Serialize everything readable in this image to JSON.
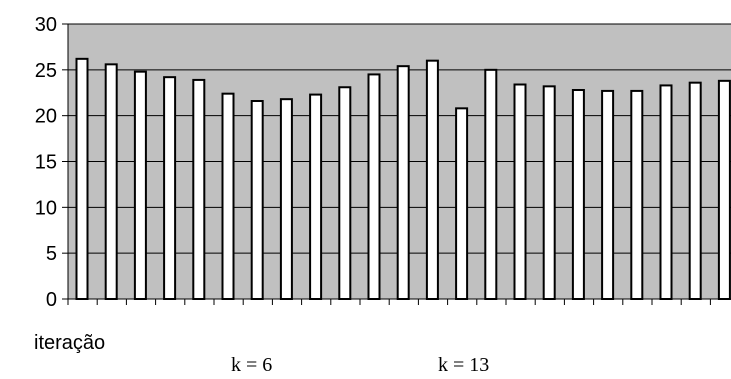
{
  "chart_data": {
    "type": "bar",
    "title": "",
    "xlabel": "iteração",
    "ylabel": "",
    "ylim": [
      0,
      30
    ],
    "yticks": [
      "0",
      "5",
      "10",
      "15",
      "20",
      "25",
      "30"
    ],
    "grid": true,
    "legend": "none",
    "values": [
      26.2,
      25.6,
      24.8,
      24.2,
      23.9,
      22.4,
      21.6,
      21.8,
      22.3,
      23.1,
      24.5,
      25.4,
      26.0,
      20.8,
      25.0,
      23.4,
      23.2,
      22.8,
      22.7,
      22.7,
      23.3,
      23.6,
      23.8
    ],
    "annotations": [
      "k = 6",
      "k = 13"
    ],
    "colors": {
      "plot_background": "#c0c0c0",
      "bar_fill": "#ffffff",
      "bar_stroke": "#000000"
    }
  }
}
